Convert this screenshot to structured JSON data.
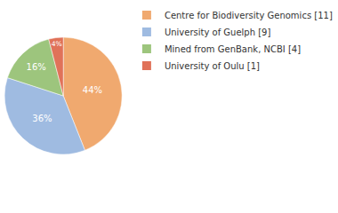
{
  "chart_data": {
    "type": "pie",
    "categories": [
      "Centre for Biodiversity Genomics [11]",
      "University of Guelph [9]",
      "Mined from GenBank, NCBI [4]",
      "University of Oulu [1]"
    ],
    "values": [
      44,
      36,
      16,
      4
    ],
    "value_labels": [
      "44%",
      "36%",
      "16%",
      "4%"
    ],
    "colors": [
      "#f0a96f",
      "#9fbbe1",
      "#9dc57d",
      "#e07259"
    ],
    "data_labels": true,
    "legend": "right"
  }
}
